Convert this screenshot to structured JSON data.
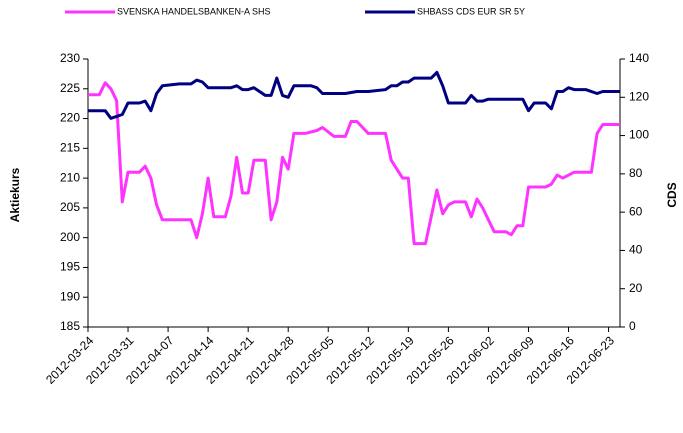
{
  "chart_data": {
    "type": "line",
    "xlim": [
      "2012-03-24",
      "2012-06-25"
    ],
    "xticks": [
      "2012-03-24",
      "2012-03-31",
      "2012-04-07",
      "2012-04-14",
      "2012-04-21",
      "2012-04-28",
      "2012-05-05",
      "2012-05-12",
      "2012-05-19",
      "2012-05-26",
      "2012-06-02",
      "2012-06-09",
      "2012-06-16",
      "2012-06-23"
    ],
    "ylabel": "Aktiekurs",
    "y2label": "CDS",
    "ylim": [
      185,
      230
    ],
    "yticks": [
      185,
      190,
      195,
      200,
      205,
      210,
      215,
      220,
      225,
      230
    ],
    "y2lim": [
      0,
      140
    ],
    "y2ticks": [
      0,
      20,
      40,
      60,
      80,
      100,
      120,
      140
    ],
    "legend": "top",
    "series": [
      {
        "name": "SVENSKA HANDELSBANKEN-A SHS",
        "color": "#ff33ff",
        "axis": "y",
        "x": [
          "2012-03-24",
          "2012-03-26",
          "2012-03-27",
          "2012-03-28",
          "2012-03-29",
          "2012-03-30",
          "2012-03-31",
          "2012-04-02",
          "2012-04-03",
          "2012-04-04",
          "2012-04-05",
          "2012-04-06",
          "2012-04-09",
          "2012-04-11",
          "2012-04-12",
          "2012-04-13",
          "2012-04-14",
          "2012-04-15",
          "2012-04-17",
          "2012-04-18",
          "2012-04-19",
          "2012-04-20",
          "2012-04-21",
          "2012-04-22",
          "2012-04-24",
          "2012-04-25",
          "2012-04-26",
          "2012-04-27",
          "2012-04-28",
          "2012-04-29",
          "2012-05-01",
          "2012-05-03",
          "2012-05-04",
          "2012-05-06",
          "2012-05-08",
          "2012-05-09",
          "2012-05-10",
          "2012-05-12",
          "2012-05-15",
          "2012-05-16",
          "2012-05-17",
          "2012-05-18",
          "2012-05-19",
          "2012-05-20",
          "2012-05-22",
          "2012-05-24",
          "2012-05-25",
          "2012-05-26",
          "2012-05-27",
          "2012-05-29",
          "2012-05-30",
          "2012-05-31",
          "2012-06-01",
          "2012-06-02",
          "2012-06-03",
          "2012-06-05",
          "2012-06-06",
          "2012-06-07",
          "2012-06-08",
          "2012-06-09",
          "2012-06-12",
          "2012-06-13",
          "2012-06-14",
          "2012-06-15",
          "2012-06-17",
          "2012-06-19",
          "2012-06-20",
          "2012-06-21",
          "2012-06-22",
          "2012-06-25"
        ],
        "values": [
          224,
          224,
          226,
          225,
          223,
          206,
          211,
          211,
          212,
          210,
          205.5,
          203,
          203,
          203,
          200,
          204,
          210,
          203.5,
          203.5,
          207,
          213.5,
          207.5,
          207.5,
          213,
          213,
          203,
          206,
          213.5,
          211.5,
          217.5,
          217.5,
          218,
          218.5,
          217,
          217,
          219.5,
          219.5,
          217.5,
          217.5,
          213,
          211.5,
          210,
          210,
          199,
          199,
          208,
          204,
          205.5,
          206,
          206,
          203.5,
          206.5,
          205,
          203,
          201,
          201,
          200.5,
          202,
          202,
          208.5,
          208.5,
          209,
          210.5,
          210,
          211,
          211,
          211,
          217.5,
          219,
          219
        ]
      },
      {
        "name": "SHBASS CDS EUR SR 5Y",
        "color": "#000080",
        "axis": "y2",
        "x": [
          "2012-03-24",
          "2012-03-26",
          "2012-03-27",
          "2012-03-28",
          "2012-03-29",
          "2012-03-30",
          "2012-03-31",
          "2012-04-02",
          "2012-04-03",
          "2012-04-04",
          "2012-04-05",
          "2012-04-06",
          "2012-04-09",
          "2012-04-11",
          "2012-04-12",
          "2012-04-13",
          "2012-04-14",
          "2012-04-17",
          "2012-04-18",
          "2012-04-19",
          "2012-04-20",
          "2012-04-21",
          "2012-04-22",
          "2012-04-24",
          "2012-04-25",
          "2012-04-26",
          "2012-04-27",
          "2012-04-28",
          "2012-04-29",
          "2012-05-02",
          "2012-05-03",
          "2012-05-04",
          "2012-05-08",
          "2012-05-10",
          "2012-05-12",
          "2012-05-15",
          "2012-05-16",
          "2012-05-17",
          "2012-05-18",
          "2012-05-19",
          "2012-05-20",
          "2012-05-23",
          "2012-05-24",
          "2012-05-25",
          "2012-05-26",
          "2012-05-29",
          "2012-05-30",
          "2012-05-31",
          "2012-06-01",
          "2012-06-02",
          "2012-06-08",
          "2012-06-09",
          "2012-06-10",
          "2012-06-12",
          "2012-06-13",
          "2012-06-14",
          "2012-06-15",
          "2012-06-16",
          "2012-06-17",
          "2012-06-19",
          "2012-06-21",
          "2012-06-22",
          "2012-06-25"
        ],
        "values": [
          113,
          113,
          113,
          109,
          110,
          111,
          117,
          117,
          118,
          113,
          122,
          126,
          127,
          127,
          129,
          128,
          125,
          125,
          125,
          126,
          124,
          124,
          125,
          121,
          121,
          130,
          121,
          120,
          126,
          126,
          125,
          122,
          122,
          123,
          123,
          124,
          126,
          126,
          128,
          128,
          130,
          130,
          133,
          126,
          117,
          117,
          121,
          118,
          118,
          119,
          119,
          113,
          117,
          117,
          114,
          123,
          123,
          125,
          124,
          124,
          122,
          123,
          123
        ]
      }
    ]
  }
}
